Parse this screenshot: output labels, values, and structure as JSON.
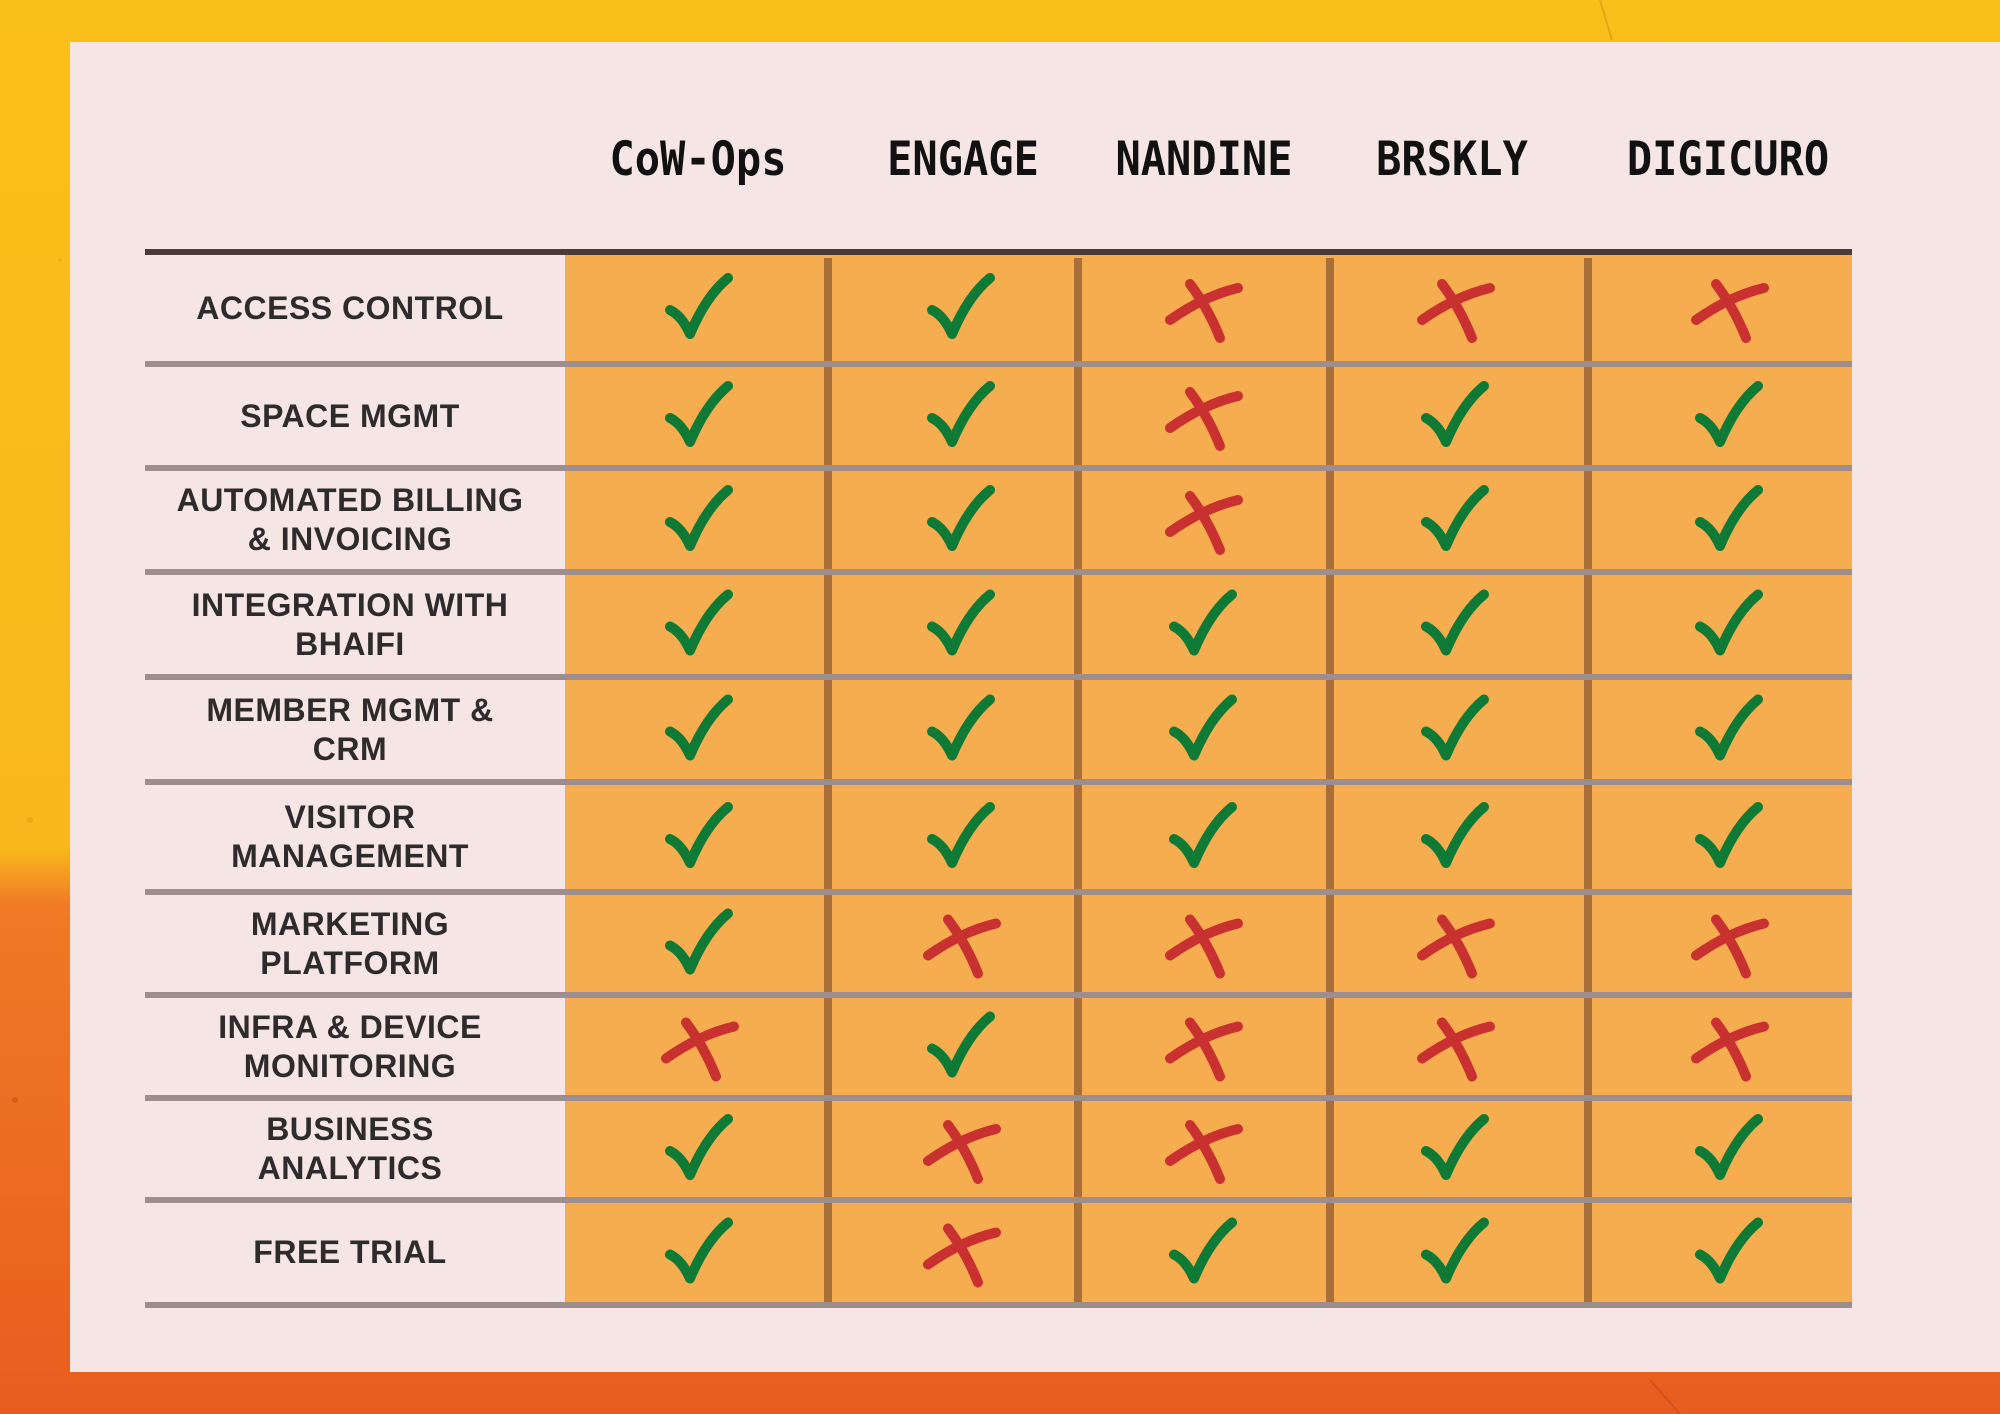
{
  "chart_data": {
    "type": "table",
    "columns": [
      "CoW-Ops",
      "ENGAGE",
      "NANDINE",
      "BRSKLY",
      "DIGICURO"
    ],
    "rows": [
      {
        "feature": "ACCESS CONTROL",
        "values": [
          true,
          true,
          false,
          false,
          false
        ]
      },
      {
        "feature": "SPACE  MGMT",
        "values": [
          true,
          true,
          false,
          true,
          true
        ]
      },
      {
        "feature": "AUTOMATED BILLING\n& INVOICING",
        "values": [
          true,
          true,
          false,
          true,
          true
        ]
      },
      {
        "feature": "INTEGRATION WITH\nBHAIFI",
        "values": [
          true,
          true,
          true,
          true,
          true
        ]
      },
      {
        "feature": "MEMBER MGMT &\nCRM",
        "values": [
          true,
          true,
          true,
          true,
          true
        ]
      },
      {
        "feature": "VISITOR\nMANAGEMENT",
        "values": [
          true,
          true,
          true,
          true,
          true
        ]
      },
      {
        "feature": "MARKETING\nPLATFORM",
        "values": [
          true,
          false,
          false,
          false,
          false
        ]
      },
      {
        "feature": "INFRA & DEVICE\nMONITORING",
        "values": [
          false,
          true,
          false,
          false,
          false
        ]
      },
      {
        "feature": "BUSINESS\nANALYTICS",
        "values": [
          true,
          false,
          false,
          true,
          true
        ]
      },
      {
        "feature": "FREE TRIAL",
        "values": [
          true,
          false,
          true,
          true,
          true
        ]
      }
    ]
  },
  "colors": {
    "check": "#0f7a35",
    "cross": "#c93131",
    "cell_fill": "#f5ad50",
    "card": "#f5e6e5",
    "header_rule": "#4a3a3a",
    "row_rule": "#9e8d8d",
    "col_divider": "#a86f3a"
  },
  "icons": {
    "yes": "check-icon",
    "no": "cross-icon"
  }
}
